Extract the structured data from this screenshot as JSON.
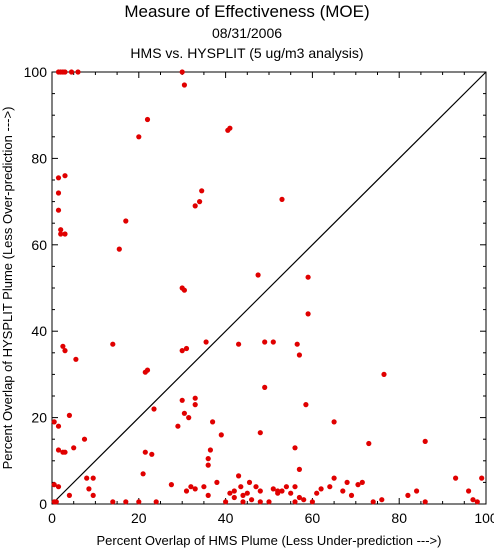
{
  "chart_data": {
    "type": "scatter",
    "title": "Measure of Effectiveness (MOE)",
    "subtitle_date": "08/31/2006",
    "subtitle_analysis": "HMS vs. HYSPLIT  (5 ug/m3 analysis)",
    "xlabel": "Percent Overlap of HMS Plume (Less Under-prediction --->)",
    "ylabel": "Percent Overlap of HYSPLIT Plume (Less Over-prediction --->)",
    "xlim": [
      0,
      100
    ],
    "ylim": [
      0,
      100
    ],
    "x_ticks": [
      "0",
      "20",
      "40",
      "60",
      "80",
      "100"
    ],
    "y_ticks": [
      "0",
      "20",
      "40",
      "60",
      "80",
      "100"
    ],
    "grid": false,
    "reference_line": "y = x",
    "marker_color": "#e00000",
    "points": [
      [
        1.5,
        100
      ],
      [
        2,
        100
      ],
      [
        2.5,
        100
      ],
      [
        3,
        100
      ],
      [
        4.5,
        100
      ],
      [
        6,
        100
      ],
      [
        30,
        100
      ],
      [
        30.5,
        97
      ],
      [
        22,
        89
      ],
      [
        20,
        85
      ],
      [
        41,
        87
      ],
      [
        1.5,
        75.5
      ],
      [
        3,
        76
      ],
      [
        1.5,
        72
      ],
      [
        1.5,
        68
      ],
      [
        17,
        65.5
      ],
      [
        2,
        63.5
      ],
      [
        2,
        62.5
      ],
      [
        3,
        62.5
      ],
      [
        15.5,
        59
      ],
      [
        33,
        69
      ],
      [
        34,
        70
      ],
      [
        34.5,
        72.5
      ],
      [
        53,
        70.5
      ],
      [
        47.5,
        53
      ],
      [
        59,
        52.5
      ],
      [
        30,
        50
      ],
      [
        30.5,
        49.5
      ],
      [
        59,
        44
      ],
      [
        40.5,
        86.5
      ],
      [
        14,
        37
      ],
      [
        2.5,
        36.5
      ],
      [
        3,
        35.5
      ],
      [
        5.5,
        33.5
      ],
      [
        30,
        35.5
      ],
      [
        31,
        36
      ],
      [
        35.5,
        37.5
      ],
      [
        43,
        37
      ],
      [
        49,
        37.5
      ],
      [
        51,
        37.5
      ],
      [
        56.5,
        37
      ],
      [
        57,
        34.5
      ],
      [
        76.5,
        30
      ],
      [
        22,
        31
      ],
      [
        21.5,
        30.5
      ],
      [
        49,
        27
      ],
      [
        0.5,
        19
      ],
      [
        1.5,
        18
      ],
      [
        4,
        20.5
      ],
      [
        30,
        24
      ],
      [
        33,
        24.5
      ],
      [
        33,
        23
      ],
      [
        23.5,
        22
      ],
      [
        58.5,
        23
      ],
      [
        29,
        18
      ],
      [
        37,
        19
      ],
      [
        1.5,
        12.5
      ],
      [
        2.5,
        12
      ],
      [
        3,
        12
      ],
      [
        5,
        13
      ],
      [
        7.5,
        15
      ],
      [
        39,
        16
      ],
      [
        48,
        16.5
      ],
      [
        30.5,
        21
      ],
      [
        31.5,
        20
      ],
      [
        65,
        19
      ],
      [
        86,
        14.5
      ],
      [
        73,
        14
      ],
      [
        21.5,
        12
      ],
      [
        23,
        11.5
      ],
      [
        36.5,
        12.5
      ],
      [
        36,
        10.5
      ],
      [
        36,
        9
      ],
      [
        56,
        13
      ],
      [
        57,
        8
      ],
      [
        70.5,
        4.5
      ],
      [
        71.5,
        5
      ],
      [
        0.5,
        4.5
      ],
      [
        1.5,
        4
      ],
      [
        4,
        2
      ],
      [
        8,
        6
      ],
      [
        8.5,
        3.5
      ],
      [
        9.5,
        2
      ],
      [
        9.5,
        6
      ],
      [
        21,
        7
      ],
      [
        24,
        0.5
      ],
      [
        27.5,
        4.5
      ],
      [
        31,
        3
      ],
      [
        32,
        4
      ],
      [
        33,
        3.5
      ],
      [
        35,
        4
      ],
      [
        36,
        2
      ],
      [
        38,
        5
      ],
      [
        41,
        2.5
      ],
      [
        42,
        1.5
      ],
      [
        42,
        3
      ],
      [
        43,
        6.5
      ],
      [
        43.5,
        4
      ],
      [
        44,
        2
      ],
      [
        45,
        2.5
      ],
      [
        45.5,
        5
      ],
      [
        46,
        1
      ],
      [
        47,
        4
      ],
      [
        48,
        3
      ],
      [
        50,
        0.5
      ],
      [
        51,
        3.5
      ],
      [
        52,
        3
      ],
      [
        52,
        2.5
      ],
      [
        53,
        3
      ],
      [
        54,
        4
      ],
      [
        55,
        2.5
      ],
      [
        56,
        4
      ],
      [
        57,
        1.5
      ],
      [
        58,
        1
      ],
      [
        61,
        2.5
      ],
      [
        62,
        3.5
      ],
      [
        64,
        4
      ],
      [
        65,
        6
      ],
      [
        67,
        3
      ],
      [
        68,
        5
      ],
      [
        69,
        2
      ],
      [
        74,
        0.5
      ],
      [
        76,
        1
      ],
      [
        82,
        2
      ],
      [
        84,
        3
      ],
      [
        86,
        0.5
      ],
      [
        93,
        6
      ],
      [
        96,
        3
      ],
      [
        97,
        1
      ],
      [
        99,
        6
      ],
      [
        0.5,
        0.5
      ],
      [
        1,
        0.5
      ],
      [
        14,
        0.5
      ],
      [
        17,
        0.5
      ],
      [
        20,
        0.5
      ],
      [
        40,
        0.5
      ],
      [
        44,
        0.5
      ],
      [
        48,
        0.5
      ],
      [
        56,
        0.5
      ],
      [
        60,
        0.5
      ],
      [
        98,
        0.5
      ]
    ]
  }
}
